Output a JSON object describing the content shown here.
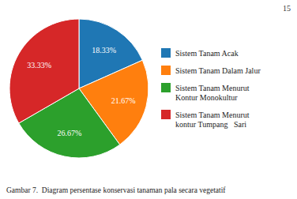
{
  "chart_data": {
    "type": "pie",
    "title": "Gambar 7.  Diagram persentase konservasi tanaman pala secara vegetatif",
    "annotations": [
      "15"
    ],
    "categories": [
      "Sistem Tanam Acak",
      "Sistem Tanam Dalam Jalur",
      "Sistem Tanam Menurut\nKontur Monokultur",
      "Sistem Tanam Menurut\nkontur Tumpang   Sari"
    ],
    "values": [
      18.33,
      21.67,
      26.67,
      33.33
    ],
    "value_labels": [
      "18.33%",
      "21.67%",
      "26.67%",
      "33.33%"
    ],
    "data_labels": true,
    "legend": "right"
  }
}
